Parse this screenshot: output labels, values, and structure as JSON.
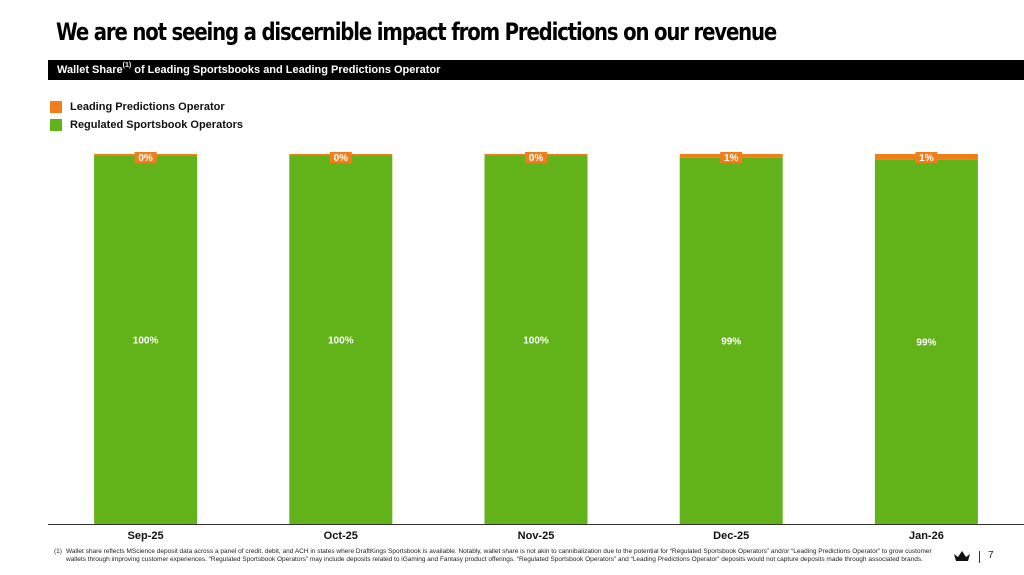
{
  "title": "We are not seeing a discernible impact from Predictions on our revenue",
  "subtitle": {
    "prefix": "Wallet Share",
    "footnote_ref": "(1)",
    "suffix": " of Leading Sportsbooks and Leading Predictions Operator"
  },
  "legend": [
    {
      "label": "Leading Predictions Operator",
      "color": "#f07f1b"
    },
    {
      "label": "Regulated Sportsbook Operators",
      "color": "#62b31a"
    }
  ],
  "chart_data": {
    "type": "bar",
    "stacked": true,
    "categories": [
      "Sep-25",
      "Oct-25",
      "Nov-25",
      "Dec-25",
      "Jan-26"
    ],
    "series": [
      {
        "name": "Regulated Sportsbook Operators",
        "color": "#62b31a",
        "values": [
          99.7,
          99.6,
          99.6,
          99.1,
          98.6
        ],
        "labels": [
          "100%",
          "100%",
          "100%",
          "99%",
          "99%"
        ]
      },
      {
        "name": "Leading Predictions Operator",
        "color": "#f07f1b",
        "values": [
          0.3,
          0.4,
          0.4,
          0.9,
          1.4
        ],
        "labels": [
          "0%",
          "0%",
          "0%",
          "1%",
          "1%"
        ]
      }
    ],
    "ylim": [
      0,
      100
    ],
    "legend_position": "top-left",
    "grid": false
  },
  "footnote": {
    "number": "(1)",
    "text": "Wallet share reflects MScience deposit data across a panel of credit, debit, and ACH in states where DraftKings Sportsbook is available. Notably, wallet share is not akin to cannibalization due to the potential for “Regulated Sportsbook Operators” and/or “Leading Predictions Operator” to grow customer wallets through improving customer experiences. “Regulated Sportsbook Operators” may include deposits related to iGaming and Fantasy product offerings. “Regulated Sportsbook Operators” and “Leading Predictions Operator” deposits would not capture deposits made through associated brands."
  },
  "page_number": "7",
  "logo_icon": "crown-icon"
}
